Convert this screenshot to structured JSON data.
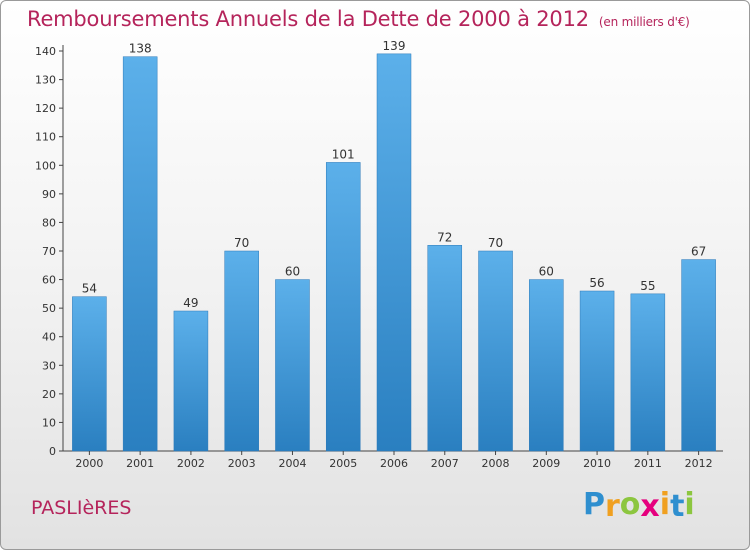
{
  "chart_data": {
    "type": "bar",
    "title": "Remboursements Annuels de la Dette de 2000 à 2012",
    "subtitle": "(en milliers d'€)",
    "categories": [
      "2000",
      "2001",
      "2002",
      "2003",
      "2004",
      "2005",
      "2006",
      "2007",
      "2008",
      "2009",
      "2010",
      "2011",
      "2012"
    ],
    "values": [
      54,
      138,
      49,
      70,
      60,
      101,
      139,
      72,
      70,
      60,
      56,
      55,
      67
    ],
    "ylim": [
      0,
      140
    ],
    "yticks": [
      0,
      10,
      20,
      30,
      40,
      50,
      60,
      70,
      80,
      90,
      100,
      110,
      120,
      130,
      140
    ],
    "grid": false,
    "bar_color": "#4a9fdc"
  },
  "commune": "PASLIèRES",
  "logo": {
    "text": "Proxiti",
    "letters": [
      {
        "ch": "P",
        "color": "#2f8fcf"
      },
      {
        "ch": "r",
        "color": "#f0a020"
      },
      {
        "ch": "o",
        "color": "#8cc63f"
      },
      {
        "ch": "x",
        "color": "#e5007e"
      },
      {
        "ch": "i",
        "color": "#f0a020"
      },
      {
        "ch": "t",
        "color": "#2f8fcf"
      },
      {
        "ch": "i",
        "color": "#8cc63f"
      }
    ]
  }
}
